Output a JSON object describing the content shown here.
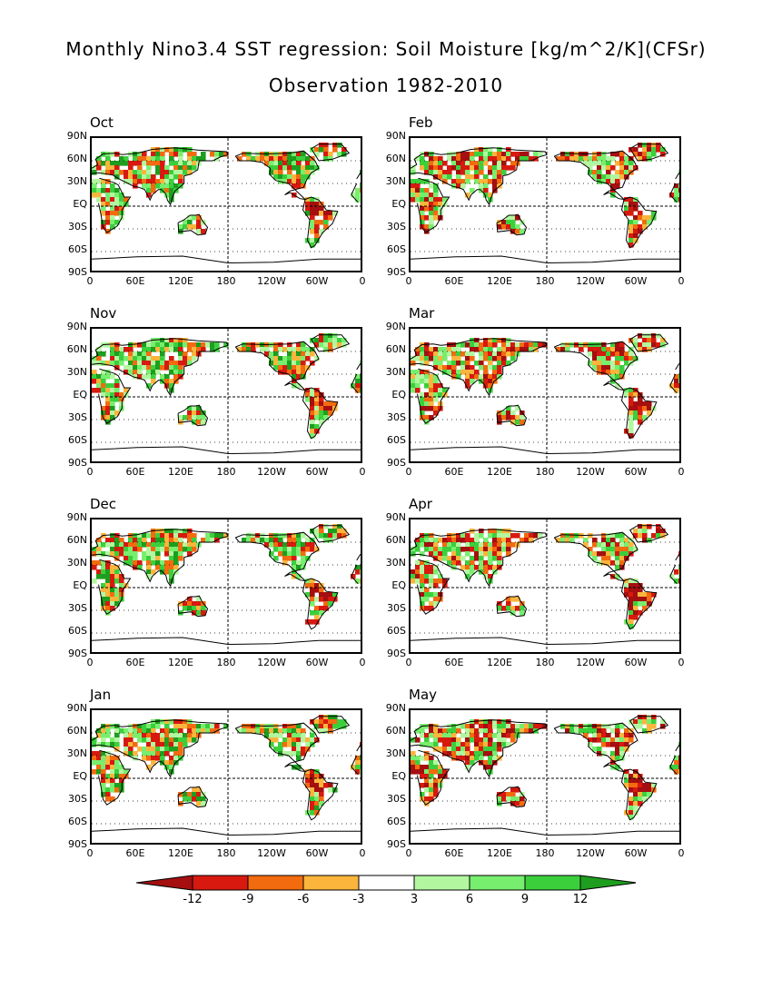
{
  "title_line1": "Monthly Nino3.4 SST regression: Soil Moisture [kg/m^2/K](CFSr)",
  "title_line2": "Observation 1982-2010",
  "panels": [
    {
      "label": "Oct"
    },
    {
      "label": "Feb"
    },
    {
      "label": "Nov"
    },
    {
      "label": "Mar"
    },
    {
      "label": "Dec"
    },
    {
      "label": "Apr"
    },
    {
      "label": "Jan"
    },
    {
      "label": "May"
    }
  ],
  "lat_labels": [
    "90N",
    "60N",
    "30N",
    "EQ",
    "30S",
    "60S",
    "90S"
  ],
  "lon_labels": [
    "0",
    "60E",
    "120E",
    "180",
    "120W",
    "60W",
    "0"
  ],
  "colorbar": {
    "labels": [
      "-12",
      "-9",
      "-6",
      "-3",
      "3",
      "6",
      "9",
      "12"
    ],
    "colors": [
      "#a50f0f",
      "#d7190f",
      "#f26b0f",
      "#fbb53c",
      "#ffffff",
      "#b2f7a0",
      "#78ee6e",
      "#3ccf3c",
      "#1e9e1e"
    ]
  }
}
